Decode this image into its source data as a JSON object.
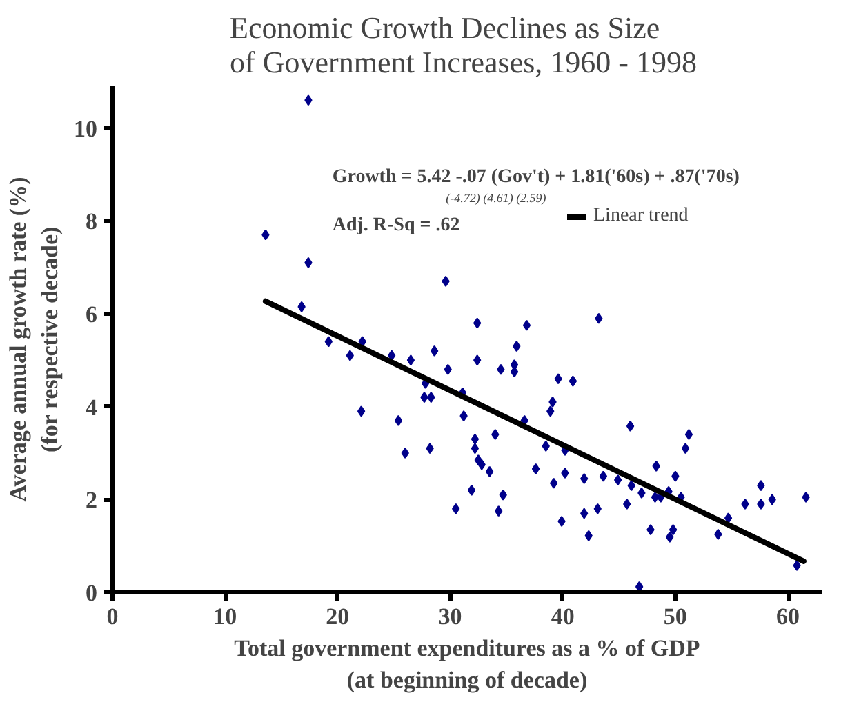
{
  "chart_data": {
    "type": "scatter",
    "title": "Economic Growth Declines as Size\nof Government Increases,  1960 - 1998",
    "xlabel": "Total government expenditures as a % of GDP\n(at beginning of decade)",
    "ylabel": "Average annual growth rate (%)\n(for respective decade)",
    "annotations": [
      "Growth = 5.42 -.07 (Gov't) + 1.81('60s) + .87('70s)",
      "(-4.72)          (4.61)          (2.59)",
      "Adj. R-Sq = .62"
    ],
    "xlim": [
      0,
      63
    ],
    "xticks": [
      0,
      10,
      20,
      30,
      40,
      50,
      60
    ],
    "ylim": [
      0,
      10.9
    ],
    "yticks": [
      0,
      2,
      4,
      6,
      8,
      10
    ],
    "grid": false,
    "legend": "top right",
    "series": [
      {
        "marker": "diamond",
        "color": "#00008b",
        "x": [
          17.4,
          13.6,
          17.4,
          29.6,
          16.8,
          32.4,
          19.2,
          22.2,
          21.1,
          24.8,
          26.5,
          28.6,
          32.4,
          22.1,
          25.4,
          26.0,
          28.2,
          29.8,
          27.8,
          27.7,
          28.3,
          31.2,
          31.1,
          32.2,
          32.2,
          32.5,
          32.8,
          33.5,
          34.0,
          31.9,
          30.5,
          34.7,
          34.3,
          34.5,
          36.8,
          43.2,
          35.9,
          35.7,
          35.7,
          39.6,
          40.9,
          39.1,
          38.9,
          36.6,
          38.5,
          40.2,
          37.6,
          39.2,
          40.2,
          39.9,
          41.9,
          41.9,
          43.1,
          42.3,
          43.6,
          44.9,
          46.0,
          46.1,
          45.7,
          47.0,
          46.8,
          47.8,
          48.3,
          48.2,
          48.7,
          49.4,
          50.0,
          49.8,
          49.5,
          50.5,
          50.9,
          51.2,
          53.8,
          54.7,
          56.2,
          57.6,
          57.6,
          58.6,
          61.6,
          60.8
        ],
        "values": [
          10.6,
          7.7,
          7.1,
          6.7,
          6.15,
          5.8,
          5.4,
          5.4,
          5.1,
          5.1,
          5.0,
          5.2,
          5.0,
          3.9,
          3.7,
          3.0,
          3.1,
          4.8,
          4.5,
          4.2,
          4.2,
          3.8,
          4.3,
          3.3,
          3.1,
          2.85,
          2.75,
          2.6,
          3.4,
          2.2,
          1.8,
          2.1,
          1.75,
          4.8,
          5.75,
          5.9,
          5.3,
          4.9,
          4.75,
          4.6,
          4.55,
          4.1,
          3.9,
          3.7,
          3.15,
          3.06,
          2.66,
          2.35,
          2.57,
          1.53,
          2.45,
          1.7,
          1.8,
          1.22,
          2.5,
          2.42,
          3.58,
          2.3,
          1.9,
          2.14,
          0.12,
          1.35,
          2.72,
          2.05,
          2.05,
          2.17,
          2.5,
          1.35,
          1.19,
          2.05,
          3.1,
          3.4,
          1.25,
          1.6,
          1.9,
          1.9,
          2.3,
          2.0,
          2.05,
          0.58
        ]
      },
      {
        "type": "line",
        "marker": "none",
        "name": "Linear trend",
        "color": "#000000",
        "x": [
          13.6,
          61.4
        ],
        "values": [
          6.27,
          0.67
        ]
      }
    ]
  }
}
